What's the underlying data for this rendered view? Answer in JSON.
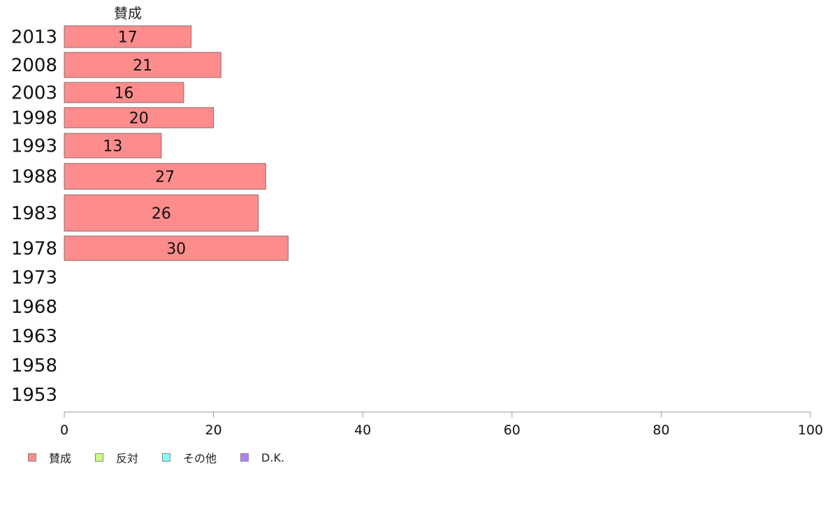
{
  "chart_data": {
    "type": "bar",
    "orientation": "horizontal",
    "categories": [
      "2013",
      "2008",
      "2003",
      "1998",
      "1993",
      "1988",
      "1983",
      "1978",
      "1973",
      "1968",
      "1963",
      "1958",
      "1953"
    ],
    "series": [
      {
        "name": "賛成",
        "color": "#ff8c8c",
        "values": [
          17,
          21,
          16,
          20,
          13,
          27,
          26,
          30,
          null,
          null,
          null,
          null,
          null
        ]
      }
    ],
    "column_header": "賛成",
    "xlim": [
      0,
      100
    ],
    "x_ticks": [
      "0",
      "20",
      "40",
      "60",
      "80",
      "100"
    ],
    "legend": [
      {
        "label": "賛成",
        "color": "#ff8c8c"
      },
      {
        "label": "反対",
        "color": "#ccff80"
      },
      {
        "label": "その他",
        "color": "#80ffff"
      },
      {
        "label": "D.K.",
        "color": "#b380ff"
      }
    ],
    "legend_position": "bottom-left",
    "grid": false
  }
}
